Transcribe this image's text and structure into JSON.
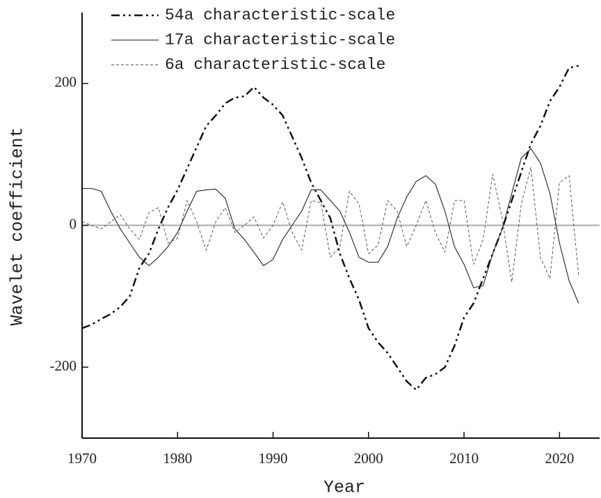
{
  "chart_data": {
    "type": "line",
    "xlabel": "Year",
    "ylabel": "Wavelet coefficient",
    "x": [
      1970,
      1971,
      1972,
      1973,
      1974,
      1975,
      1976,
      1977,
      1978,
      1979,
      1980,
      1981,
      1982,
      1983,
      1984,
      1985,
      1986,
      1987,
      1988,
      1989,
      1990,
      1991,
      1992,
      1993,
      1994,
      1995,
      1996,
      1997,
      1998,
      1999,
      2000,
      2001,
      2002,
      2003,
      2004,
      2005,
      2006,
      2007,
      2008,
      2009,
      2010,
      2011,
      2012,
      2013,
      2014,
      2015,
      2016,
      2017,
      2018,
      2019,
      2020,
      2021,
      2022
    ],
    "series": [
      {
        "name": "54a characteristic-scale",
        "color": "#111111",
        "linestyle": "dashdotdot",
        "linewidth": 2.5,
        "values": [
          -145,
          -140,
          -132,
          -125,
          -115,
          -100,
          -60,
          -40,
          -5,
          25,
          50,
          80,
          110,
          140,
          155,
          172,
          180,
          182,
          195,
          180,
          170,
          155,
          125,
          95,
          60,
          35,
          10,
          -40,
          -75,
          -105,
          -145,
          -165,
          -180,
          -200,
          -220,
          -232,
          -215,
          -210,
          -200,
          -170,
          -130,
          -110,
          -75,
          -40,
          -5,
          35,
          75,
          115,
          140,
          175,
          195,
          222,
          225
        ]
      },
      {
        "name": "17a characteristic-scale",
        "color": "#222222",
        "linestyle": "solid",
        "linewidth": 1.1,
        "values": [
          52,
          52,
          48,
          20,
          -5,
          -25,
          -45,
          -57,
          -45,
          -30,
          -10,
          20,
          48,
          50,
          51,
          38,
          -5,
          -20,
          -38,
          -57,
          -48,
          -20,
          0,
          20,
          50,
          50,
          35,
          20,
          -10,
          -45,
          -52,
          -52,
          -30,
          10,
          40,
          62,
          70,
          58,
          20,
          -30,
          -55,
          -88,
          -85,
          -40,
          -5,
          45,
          95,
          108,
          88,
          45,
          -25,
          -78,
          -110
        ]
      },
      {
        "name": "6a characteristic-scale",
        "color": "#444444",
        "linestyle": "dashed",
        "linewidth": 0.9,
        "values": [
          5,
          0,
          -5,
          5,
          15,
          -5,
          -20,
          18,
          25,
          -25,
          -18,
          35,
          5,
          -35,
          5,
          25,
          -10,
          0,
          12,
          -18,
          0,
          33,
          -10,
          -35,
          35,
          32,
          -45,
          -30,
          48,
          30,
          -40,
          -28,
          35,
          20,
          -30,
          0,
          35,
          -10,
          -38,
          35,
          35,
          -55,
          -20,
          72,
          10,
          -80,
          30,
          82,
          -45,
          -75,
          60,
          70,
          -70
        ]
      }
    ],
    "xlim": [
      1970,
      2024.2
    ],
    "xticks": [
      1970,
      1980,
      1990,
      2000,
      2010,
      2020
    ],
    "ylim": [
      -300,
      300
    ],
    "yticks": [
      -200,
      0,
      200
    ],
    "zero_line": true,
    "legend": "upper left"
  }
}
